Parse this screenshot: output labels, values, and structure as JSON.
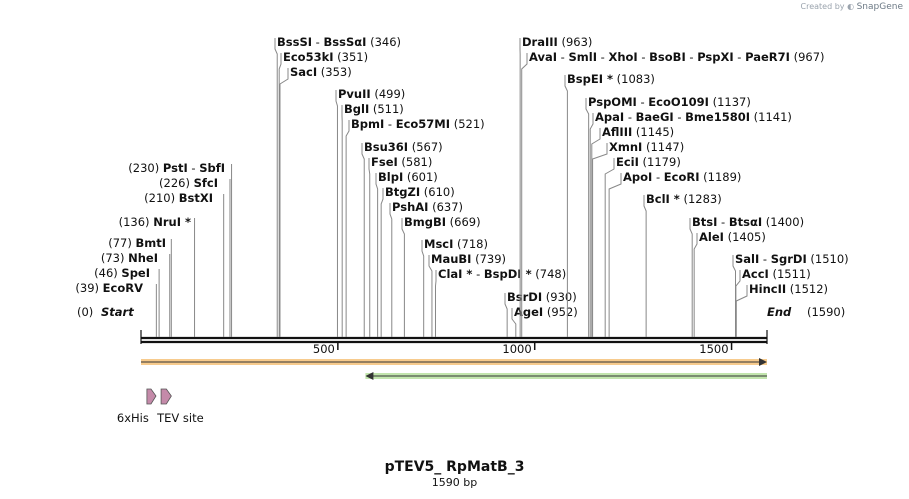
{
  "credit": {
    "prefix": "Created by",
    "brand": "SnapGene"
  },
  "title": "pTEV5_ RpMatB_3",
  "length_label": "1590 bp",
  "sequence_length": 1590,
  "ruler_ticks": [
    500,
    1000,
    1500
  ],
  "start_label": "Start",
  "end_label": "End",
  "start_pos": "(0)",
  "end_pos": "(1590)",
  "features": [
    {
      "label": "6xHis",
      "start": 15,
      "end": 33,
      "color": "#c48aa9"
    },
    {
      "label": "TEV site",
      "start": 51,
      "end": 72,
      "color": "#c48aa9"
    }
  ],
  "orfs": [
    {
      "direction": "forward",
      "start": 0,
      "end": 1590,
      "color": "#f0a030"
    },
    {
      "direction": "reverse",
      "start": 570,
      "end": 1590,
      "color": "#8fd06a"
    }
  ],
  "sites_left": [
    {
      "names": [
        "EcoRV"
      ],
      "pos": "(39)",
      "bp": 39
    },
    {
      "names": [
        "SpeI"
      ],
      "pos": "(46)",
      "bp": 46
    },
    {
      "names": [
        "NheI"
      ],
      "pos": "(73)",
      "bp": 73
    },
    {
      "names": [
        "BmtI"
      ],
      "pos": "(77)",
      "bp": 77
    },
    {
      "names": [
        "NruI *"
      ],
      "pos": "(136)",
      "bp": 136
    },
    {
      "names": [
        "BstXI"
      ],
      "pos": "(210)",
      "bp": 210
    },
    {
      "names": [
        "SfcI"
      ],
      "pos": "(226)",
      "bp": 226
    },
    {
      "names": [
        "PstI",
        "SbfI"
      ],
      "pos": "(230)",
      "bp": 230
    }
  ],
  "sites_right": [
    {
      "names": [
        "BssSI",
        "BssSαI"
      ],
      "pos": "(346)",
      "bp": 346
    },
    {
      "names": [
        "Eco53kI"
      ],
      "pos": "(351)",
      "bp": 351
    },
    {
      "names": [
        "SacI"
      ],
      "pos": "(353)",
      "bp": 353
    },
    {
      "names": [
        "PvuII"
      ],
      "pos": "(499)",
      "bp": 499
    },
    {
      "names": [
        "BglI"
      ],
      "pos": "(511)",
      "bp": 511
    },
    {
      "names": [
        "BpmI",
        "Eco57MI"
      ],
      "pos": "(521)",
      "bp": 521
    },
    {
      "names": [
        "Bsu36I"
      ],
      "pos": "(567)",
      "bp": 567
    },
    {
      "names": [
        "FseI"
      ],
      "pos": "(581)",
      "bp": 581
    },
    {
      "names": [
        "BlpI"
      ],
      "pos": "(601)",
      "bp": 601
    },
    {
      "names": [
        "BtgZI"
      ],
      "pos": "(610)",
      "bp": 610
    },
    {
      "names": [
        "PshAI"
      ],
      "pos": "(637)",
      "bp": 637
    },
    {
      "names": [
        "BmgBI"
      ],
      "pos": "(669)",
      "bp": 669
    },
    {
      "names": [
        "MscI"
      ],
      "pos": "(718)",
      "bp": 718
    },
    {
      "names": [
        "MauBI"
      ],
      "pos": "(739)",
      "bp": 739
    },
    {
      "names": [
        "ClaI *",
        "BspDI *"
      ],
      "pos": "(748)",
      "bp": 748
    },
    {
      "names": [
        "BsrDI"
      ],
      "pos": "(930)",
      "bp": 930
    },
    {
      "names": [
        "AgeI"
      ],
      "pos": "(952)",
      "bp": 952
    },
    {
      "names": [
        "DraIII"
      ],
      "pos": "(963)",
      "bp": 963
    },
    {
      "names": [
        "AvaI",
        "SmlI",
        "XhoI",
        "BsoBI",
        "PspXI",
        "PaeR7I"
      ],
      "pos": "(967)",
      "bp": 967
    },
    {
      "names": [
        "BspEI *"
      ],
      "pos": "(1083)",
      "bp": 1083
    },
    {
      "names": [
        "PspOMI",
        "EcoO109I"
      ],
      "pos": "(1137)",
      "bp": 1137
    },
    {
      "names": [
        "ApaI",
        "BaeGI",
        "Bme1580I"
      ],
      "pos": "(1141)",
      "bp": 1141
    },
    {
      "names": [
        "AflIII"
      ],
      "pos": "(1145)",
      "bp": 1145
    },
    {
      "names": [
        "XmnI"
      ],
      "pos": "(1147)",
      "bp": 1147
    },
    {
      "names": [
        "EciI"
      ],
      "pos": "(1179)",
      "bp": 1179
    },
    {
      "names": [
        "ApoI",
        "EcoRI"
      ],
      "pos": "(1189)",
      "bp": 1189
    },
    {
      "names": [
        "BclI *"
      ],
      "pos": "(1283)",
      "bp": 1283
    },
    {
      "names": [
        "BtsI",
        "BtsαI"
      ],
      "pos": "(1400)",
      "bp": 1400
    },
    {
      "names": [
        "AleI"
      ],
      "pos": "(1405)",
      "bp": 1405
    },
    {
      "names": [
        "SalI",
        "SgrDI"
      ],
      "pos": "(1510)",
      "bp": 1510
    },
    {
      "names": [
        "AccI"
      ],
      "pos": "(1511)",
      "bp": 1511
    },
    {
      "names": [
        "HincII"
      ],
      "pos": "(1512)",
      "bp": 1512
    }
  ]
}
